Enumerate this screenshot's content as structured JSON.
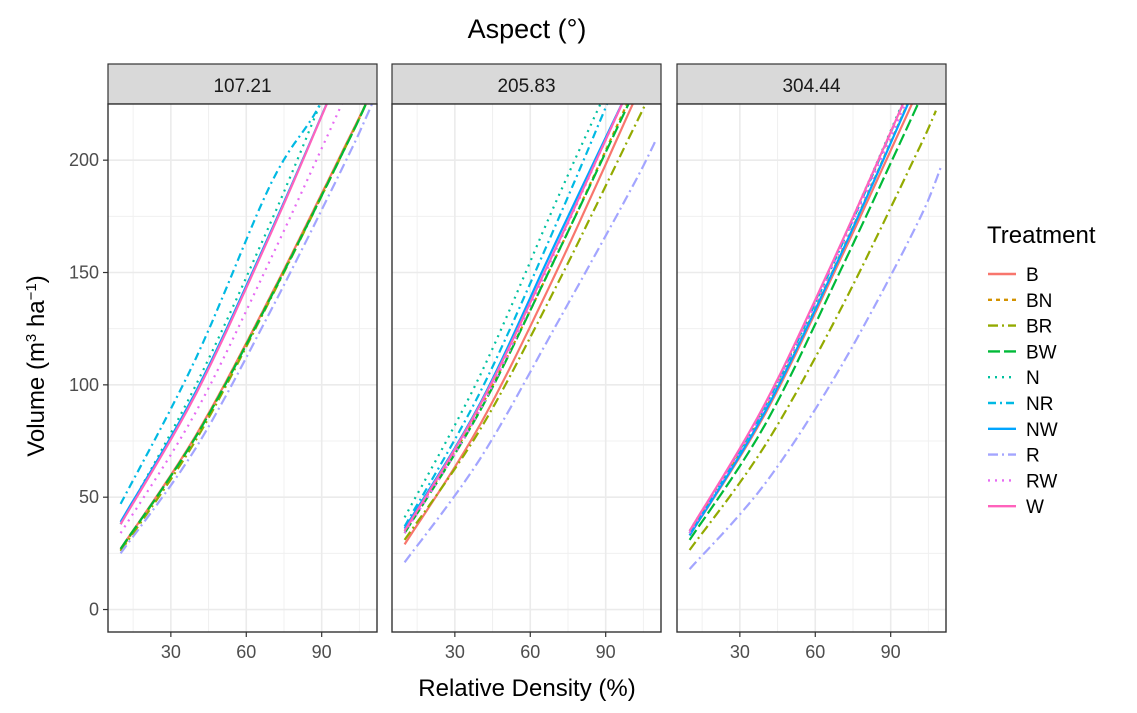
{
  "chart_data": {
    "type": "line",
    "title": "Aspect (°)",
    "xlabel": "Relative Density (%)",
    "ylabel_main": "Volume (m",
    "ylabel_sup1": "3",
    "ylabel_mid": " ha",
    "ylabel_sup2": "−1",
    "ylabel_end": ")",
    "xlim": [
      5,
      112
    ],
    "ylim": [
      -10,
      225
    ],
    "x_ticks": [
      30,
      60,
      90
    ],
    "y_ticks": [
      0,
      50,
      100,
      150,
      200
    ],
    "grid": true,
    "legend": {
      "title": "Treatment",
      "position": "right"
    },
    "facets": [
      "107.21",
      "205.83",
      "304.44"
    ],
    "series": [
      {
        "name": "B",
        "color": "#F8766D",
        "dash": "",
        "curves": [
          [
            [
              10,
              27.0
            ],
            [
              40,
              77.6
            ],
            [
              70,
              140.3
            ],
            [
              100,
              207.8
            ],
            [
              108,
              226
            ]
          ],
          [
            [
              10,
              29.0
            ],
            [
              40,
              82.2
            ],
            [
              70,
              149.4
            ],
            [
              100,
              223.1
            ],
            [
              103,
              231
            ]
          ],
          [
            [
              10,
              33.0
            ],
            [
              40,
              87.0
            ],
            [
              70,
              155.9
            ],
            [
              100,
              228.8
            ],
            [
              100,
              229
            ]
          ]
        ]
      },
      {
        "name": "BN",
        "color": "#D39200",
        "dash": "4 4",
        "curves": [
          [
            [
              10,
              26.5
            ],
            [
              40,
              77.2
            ],
            [
              70,
              140.0
            ],
            [
              100,
              207.4
            ],
            [
              108,
              226
            ]
          ],
          [
            [
              10,
              35.0
            ],
            [
              40,
              89.4
            ],
            [
              70,
              156.4
            ],
            [
              100,
              228.7
            ],
            [
              100,
              229
            ]
          ],
          [
            [
              10,
              34.0
            ],
            [
              40,
              88.8
            ],
            [
              70,
              158.0
            ],
            [
              100,
              233.6
            ],
            [
              100,
              234
            ]
          ]
        ]
      },
      {
        "name": "BR",
        "color": "#93AA00",
        "dash": "10 4 2 4",
        "curves": [
          [
            [
              10,
              26.0
            ],
            [
              40,
              75.5
            ],
            [
              70,
              139.0
            ],
            [
              100,
              207.0
            ],
            [
              108,
              226
            ]
          ],
          [
            [
              10,
              31.0
            ],
            [
              40,
              80.0
            ],
            [
              70,
              143.1
            ],
            [
              100,
              211.6
            ],
            [
              108,
              230
            ]
          ],
          [
            [
              10,
              26.5
            ],
            [
              40,
              73.0
            ],
            [
              70,
              133.4
            ],
            [
              100,
              202.2
            ],
            [
              108,
              222
            ]
          ]
        ]
      },
      {
        "name": "BW",
        "color": "#00BA38",
        "dash": "12 4",
        "curves": [
          [
            [
              10,
              27.0
            ],
            [
              40,
              77.0
            ],
            [
              70,
              139.5
            ],
            [
              100,
              207.0
            ],
            [
              108,
              226
            ]
          ],
          [
            [
              10,
              34.0
            ],
            [
              40,
              88.4
            ],
            [
              70,
              156.5
            ],
            [
              100,
              227.2
            ],
            [
              102,
              232
            ]
          ],
          [
            [
              10,
              31.0
            ],
            [
              40,
              82.2
            ],
            [
              70,
              150.8
            ],
            [
              100,
              222.9
            ],
            [
              102,
              228
            ]
          ]
        ]
      },
      {
        "name": "N",
        "color": "#00C19F",
        "dash": "2 5",
        "curves": [
          [
            [
              10,
              38.0
            ],
            [
              40,
              100.0
            ],
            [
              70,
              173.0
            ],
            [
              90,
              226.6
            ],
            [
              100,
              254
            ]
          ],
          [
            [
              10,
              41.0
            ],
            [
              40,
              104.1
            ],
            [
              70,
              180.9
            ],
            [
              90,
              230.2
            ],
            [
              100,
              256
            ]
          ],
          [
            [
              10,
              35.0
            ],
            [
              40,
              90.8
            ],
            [
              70,
              162.0
            ],
            [
              100,
              239.0
            ],
            [
              100,
              239
            ]
          ]
        ]
      },
      {
        "name": "NR",
        "color": "#00B9E3",
        "dash": "8 4 2 4",
        "curves": [
          [
            [
              10,
              47.0
            ],
            [
              40,
              111.9
            ],
            [
              70,
              190.0
            ],
            [
              90,
              226.6
            ],
            [
              100,
              266
            ]
          ],
          [
            [
              10,
              37.0
            ],
            [
              40,
              96.6
            ],
            [
              70,
              170.8
            ],
            [
              95,
              236.9
            ],
            [
              100,
              251
            ]
          ],
          [
            [
              10,
              34.0
            ],
            [
              40,
              90.2
            ],
            [
              70,
              160.9
            ],
            [
              100,
              238.3
            ],
            [
              100,
              238
            ]
          ]
        ]
      },
      {
        "name": "NW",
        "color": "#00A5FF",
        "dash": "",
        "curves": [
          [
            [
              10,
              39.0
            ],
            [
              40,
              97.1
            ],
            [
              70,
              168.8
            ],
            [
              95,
              233.0
            ],
            [
              100,
              248
            ]
          ],
          [
            [
              10,
              36.0
            ],
            [
              40,
              91.6
            ],
            [
              70,
              163.1
            ],
            [
              100,
              233.4
            ],
            [
              100,
              233
            ]
          ],
          [
            [
              10,
              33.0
            ],
            [
              40,
              88.0
            ],
            [
              70,
              157.6
            ],
            [
              100,
              233.0
            ],
            [
              100,
              233
            ]
          ]
        ]
      },
      {
        "name": "R",
        "color": "#A3A5FF",
        "dash": "10 4 2 4",
        "curves": [
          [
            [
              10,
              25.0
            ],
            [
              40,
              72.0
            ],
            [
              70,
              133.6
            ],
            [
              100,
              200.6
            ],
            [
              110,
              225
            ]
          ],
          [
            [
              10,
              21.0
            ],
            [
              40,
              67.0
            ],
            [
              70,
              126.0
            ],
            [
              100,
              186.9
            ],
            [
              110,
              209
            ]
          ],
          [
            [
              10,
              18.0
            ],
            [
              40,
              56.0
            ],
            [
              70,
              107.7
            ],
            [
              100,
              170.4
            ],
            [
              110,
              197
            ]
          ]
        ]
      },
      {
        "name": "RW",
        "color": "#E76BF3",
        "dash": "2 5",
        "curves": [
          [
            [
              10,
              34.0
            ],
            [
              40,
              88.0
            ],
            [
              70,
              156.7
            ],
            [
              100,
              229.8
            ],
            [
              101,
              232
            ]
          ],
          [
            [
              10,
              34.0
            ],
            [
              40,
              88.8
            ],
            [
              70,
              159.5
            ],
            [
              100,
              234.0
            ],
            [
              100,
              234
            ]
          ],
          [
            [
              10,
              34.0
            ],
            [
              40,
              90.0
            ],
            [
              70,
              160.4
            ],
            [
              100,
              235.5
            ],
            [
              100,
              235
            ]
          ]
        ]
      },
      {
        "name": "W",
        "color": "#FF62BC",
        "dash": "",
        "curves": [
          [
            [
              10,
              38.0
            ],
            [
              40,
              96.0
            ],
            [
              70,
              168.0
            ],
            [
              95,
              232.8
            ],
            [
              100,
              246
            ]
          ],
          [
            [
              10,
              35.0
            ],
            [
              40,
              91.0
            ],
            [
              70,
              160.5
            ],
            [
              100,
              233.6
            ],
            [
              100,
              234
            ]
          ],
          [
            [
              10,
              35.0
            ],
            [
              40,
              91.6
            ],
            [
              70,
              162.3
            ],
            [
              100,
              238.0
            ],
            [
              100,
              238
            ]
          ]
        ]
      }
    ]
  }
}
